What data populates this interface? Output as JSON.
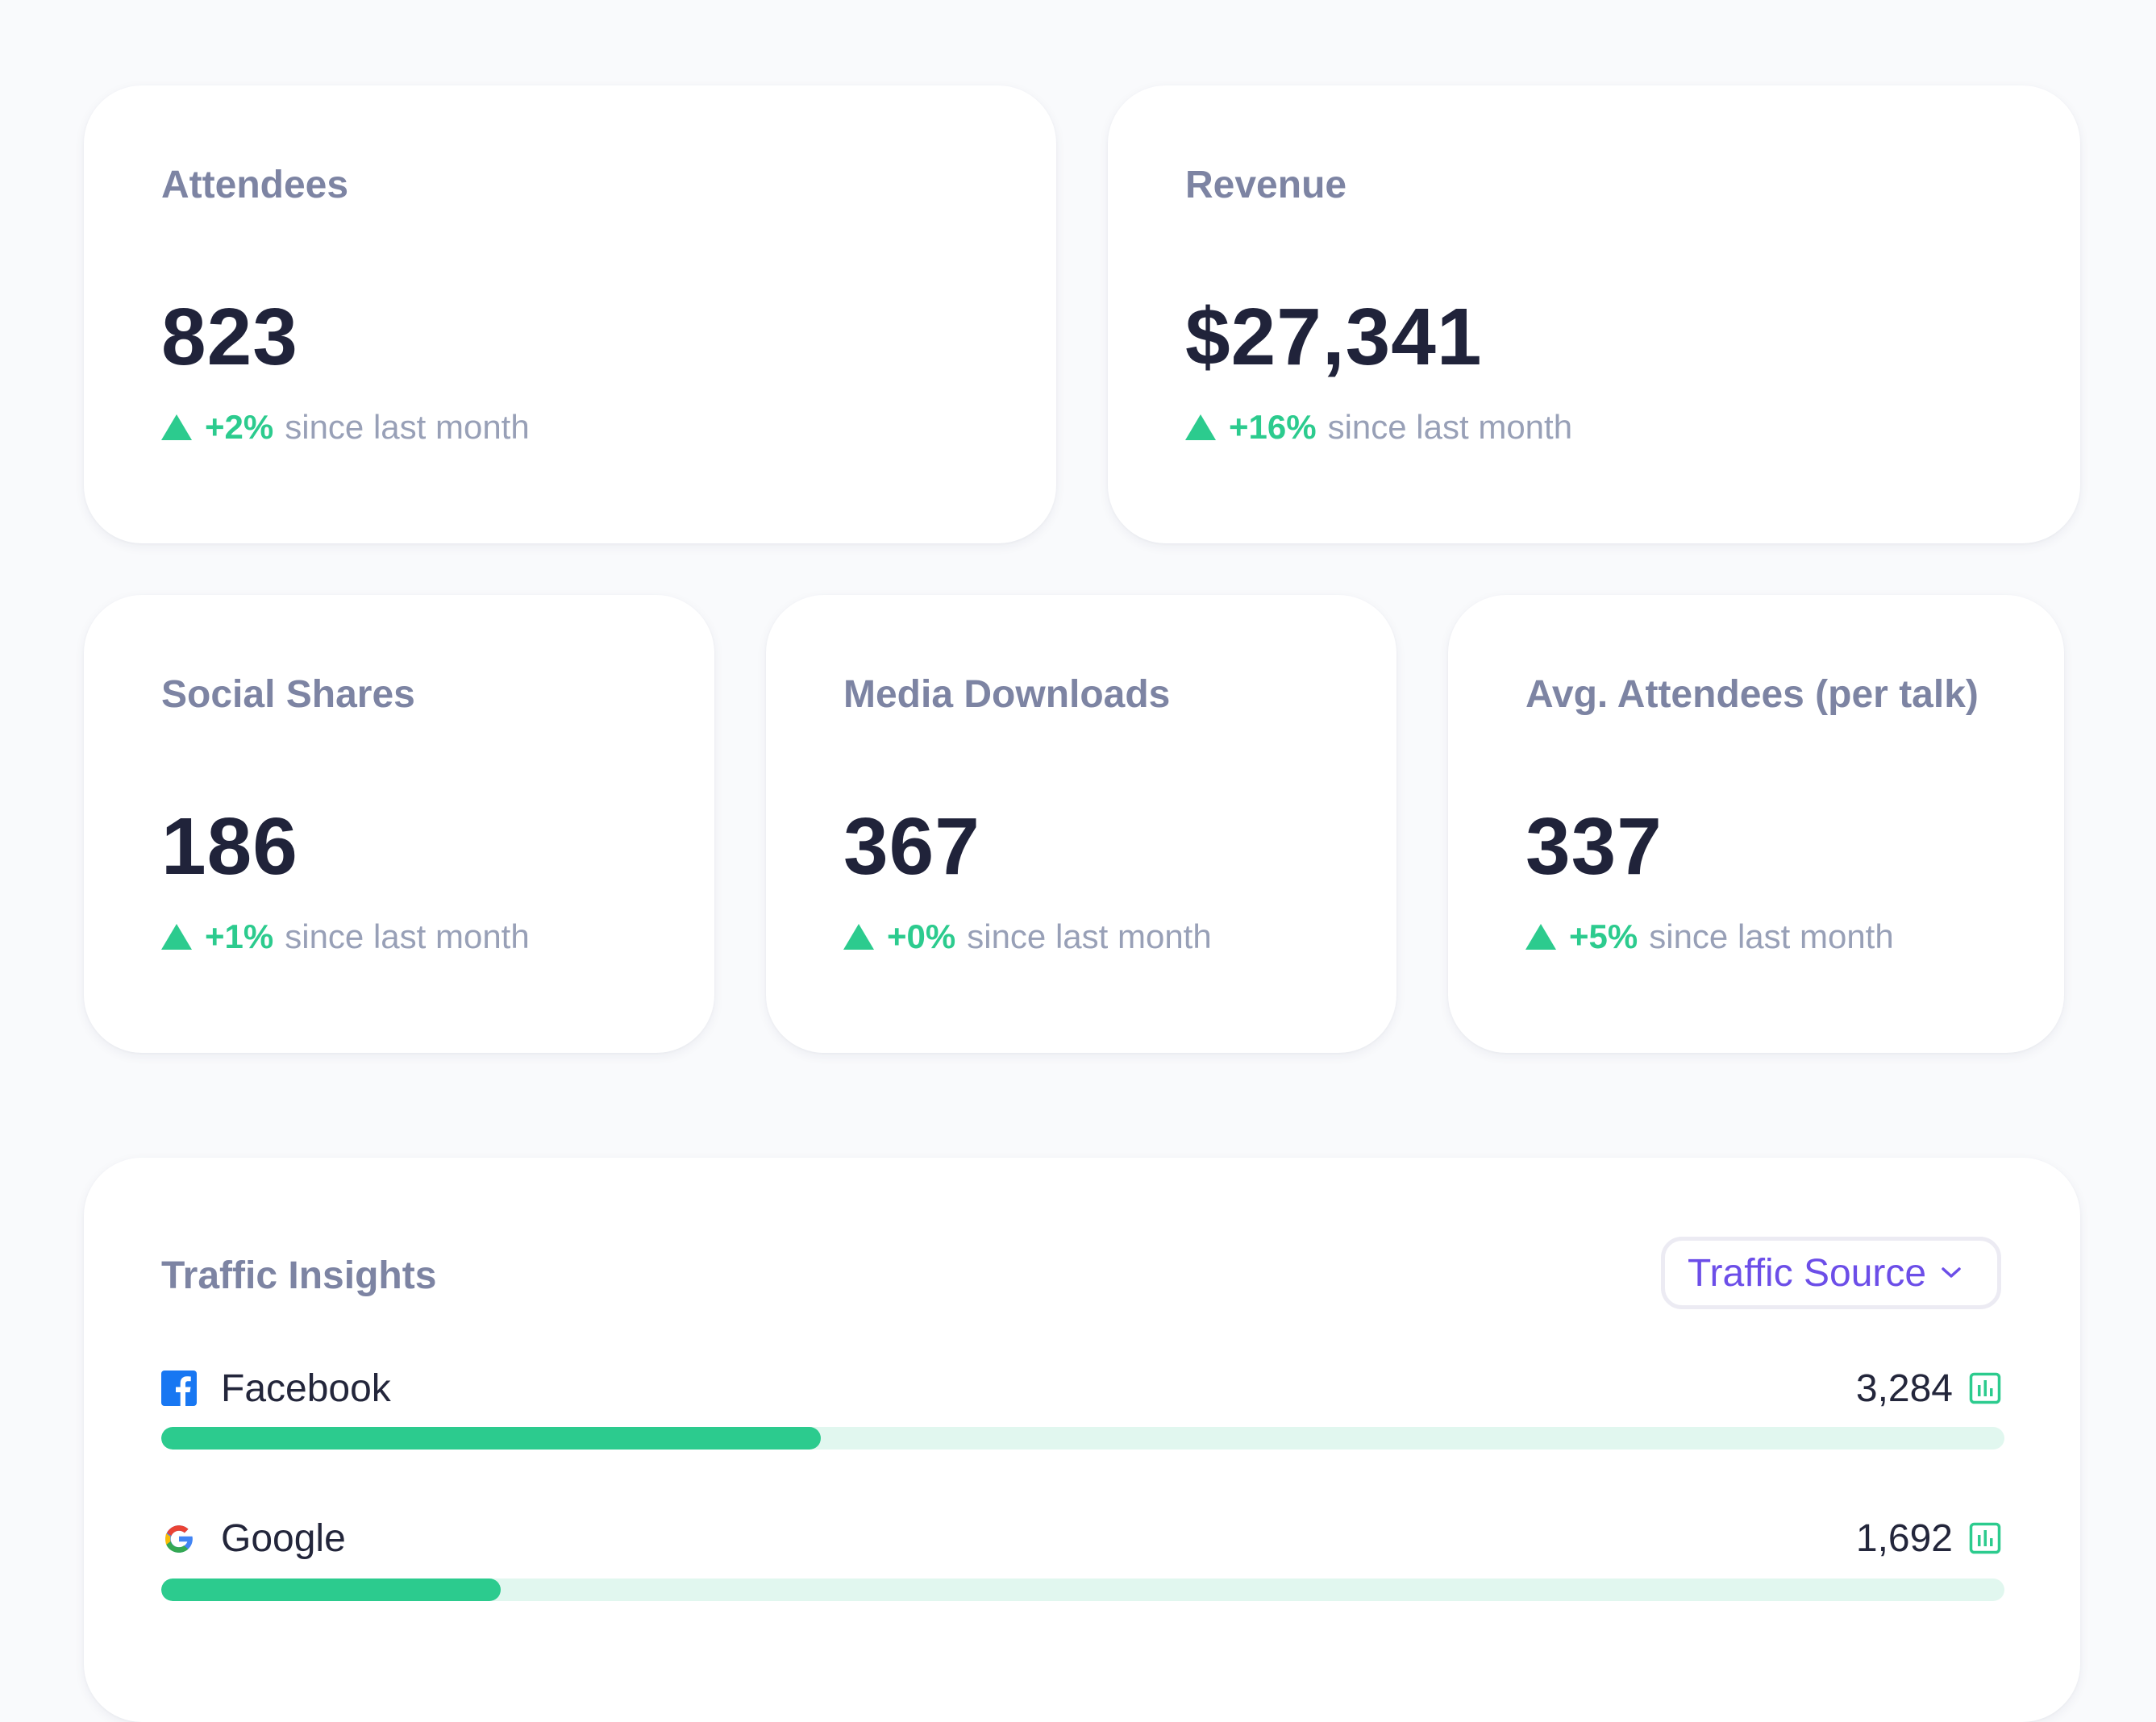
{
  "stats": {
    "attendees": {
      "label": "Attendees",
      "value": "823",
      "change": "+2%",
      "since": "since last month"
    },
    "revenue": {
      "label": "Revenue",
      "value": "$27,341",
      "change": "+16%",
      "since": "since last month"
    },
    "social_shares": {
      "label": "Social Shares",
      "value": "186",
      "change": "+1%",
      "since": "since last month"
    },
    "media_downloads": {
      "label": "Media Downloads",
      "value": "367",
      "change": "+0%",
      "since": "since last month"
    },
    "avg_attendees": {
      "label": "Avg. Attendees (per talk)",
      "value": "337",
      "change": "+5%",
      "since": "since last month"
    }
  },
  "traffic": {
    "title": "Traffic Insights",
    "dropdown_label": "Traffic Source",
    "sources": [
      {
        "name": "Facebook",
        "value": "3,284",
        "icon": "facebook-icon",
        "fraction": 0.358
      },
      {
        "name": "Google",
        "value": "1,692",
        "icon": "google-icon",
        "fraction": 0.184
      }
    ]
  },
  "colors": {
    "accent_green": "#2ccb8e",
    "track_green": "#e1f7ef",
    "dropdown_purple": "#6c4ee8",
    "label_gray": "#7d84a3",
    "value_dark": "#20233a"
  }
}
